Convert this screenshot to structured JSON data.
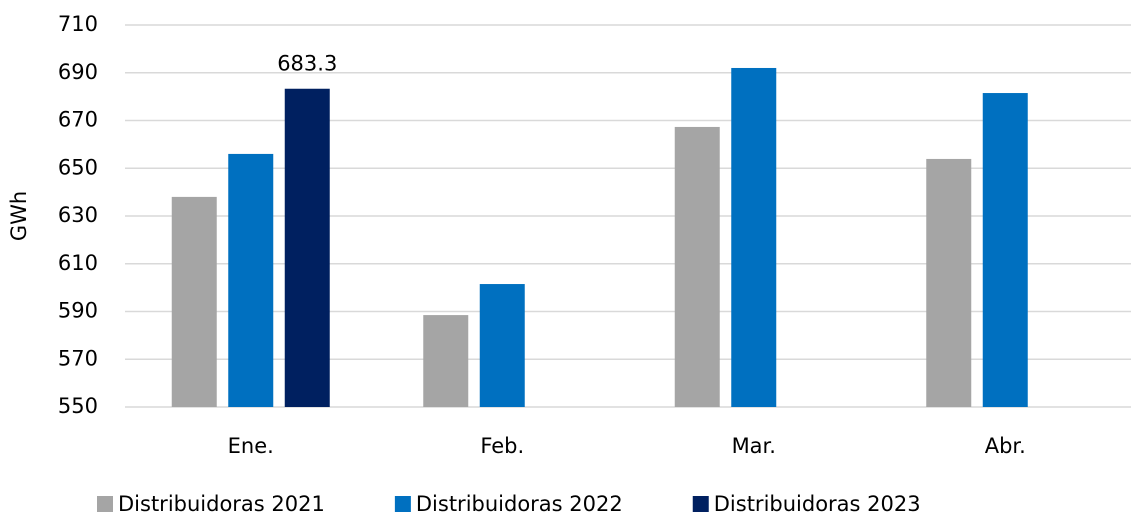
{
  "chart_data": {
    "type": "bar",
    "y_label": "GWh",
    "categories": [
      "Ene.",
      "Feb.",
      "Mar.",
      "Abr."
    ],
    "series": [
      {
        "name": "Distribuidoras 2021",
        "color": "#a5a5a5",
        "values": [
          638,
          588.5,
          667.3,
          653.9
        ]
      },
      {
        "name": "Distribuidoras 2022",
        "color": "#0070c0",
        "values": [
          656,
          601.5,
          692,
          681.5
        ]
      },
      {
        "name": "Distribuidoras 2023",
        "color": "#002060",
        "values": [
          683.3,
          null,
          null,
          null
        ],
        "data_labels": true
      }
    ],
    "ylim": [
      550,
      710
    ],
    "yticks": [
      550,
      570,
      590,
      610,
      630,
      650,
      670,
      690,
      710
    ],
    "grid": true,
    "legend": "bottom"
  }
}
